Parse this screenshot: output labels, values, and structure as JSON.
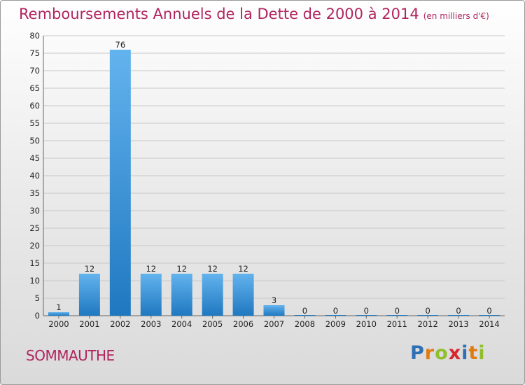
{
  "header": {
    "title": "Remboursements Annuels de la Dette de 2000 à 2014",
    "unit": "(en milliers d'€)"
  },
  "footer": {
    "city": "SOMMAUTHE",
    "logo": "Proxiti"
  },
  "colors": {
    "title": "#b0245e",
    "bar_light": "#63b3ee",
    "bar_dark": "#1f78c0",
    "grid": "#c8c8c8"
  },
  "chart_data": {
    "type": "bar",
    "title": "Remboursements Annuels de la Dette de 2000 à 2014",
    "subtitle": "(en milliers d'€)",
    "xlabel": "",
    "ylabel": "",
    "categories": [
      "2000",
      "2001",
      "2002",
      "2003",
      "2004",
      "2005",
      "2006",
      "2007",
      "2008",
      "2009",
      "2010",
      "2011",
      "2012",
      "2013",
      "2014"
    ],
    "values": [
      1,
      12,
      76,
      12,
      12,
      12,
      12,
      3,
      0,
      0,
      0,
      0,
      0,
      0,
      0
    ],
    "data_labels": [
      "1",
      "12",
      "76",
      "12",
      "12",
      "12",
      "12",
      "3",
      "0",
      "0",
      "0",
      "0",
      "0",
      "0",
      "0"
    ],
    "ylim": [
      0,
      80
    ],
    "yticks": [
      0,
      5,
      10,
      15,
      20,
      25,
      30,
      35,
      40,
      45,
      50,
      55,
      60,
      65,
      70,
      75,
      80
    ],
    "grid": true
  }
}
